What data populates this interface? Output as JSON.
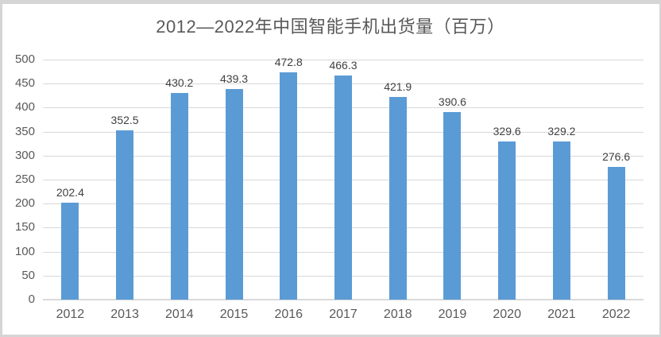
{
  "chart_data": {
    "type": "bar",
    "title": "2012—2022年中国智能手机出货量（百万）",
    "categories": [
      "2012",
      "2013",
      "2014",
      "2015",
      "2016",
      "2017",
      "2018",
      "2019",
      "2020",
      "2021",
      "2022"
    ],
    "values": [
      202.4,
      352.5,
      430.2,
      439.3,
      472.8,
      466.3,
      421.9,
      390.6,
      329.6,
      329.2,
      276.6
    ],
    "xlabel": "",
    "ylabel": "",
    "ylim": [
      0,
      500
    ],
    "ytick_step": 50,
    "grid": true,
    "legend": false,
    "data_labels": true,
    "colors": {
      "bar": "#5B9BD5",
      "gridline": "#D9D9D9",
      "axis_line": "#D9D9D9",
      "tick_labels": "#595959",
      "value_labels": "#404040",
      "title": "#595959",
      "frame_border": "#D5D5D5",
      "background": "#FFFFFF"
    }
  }
}
